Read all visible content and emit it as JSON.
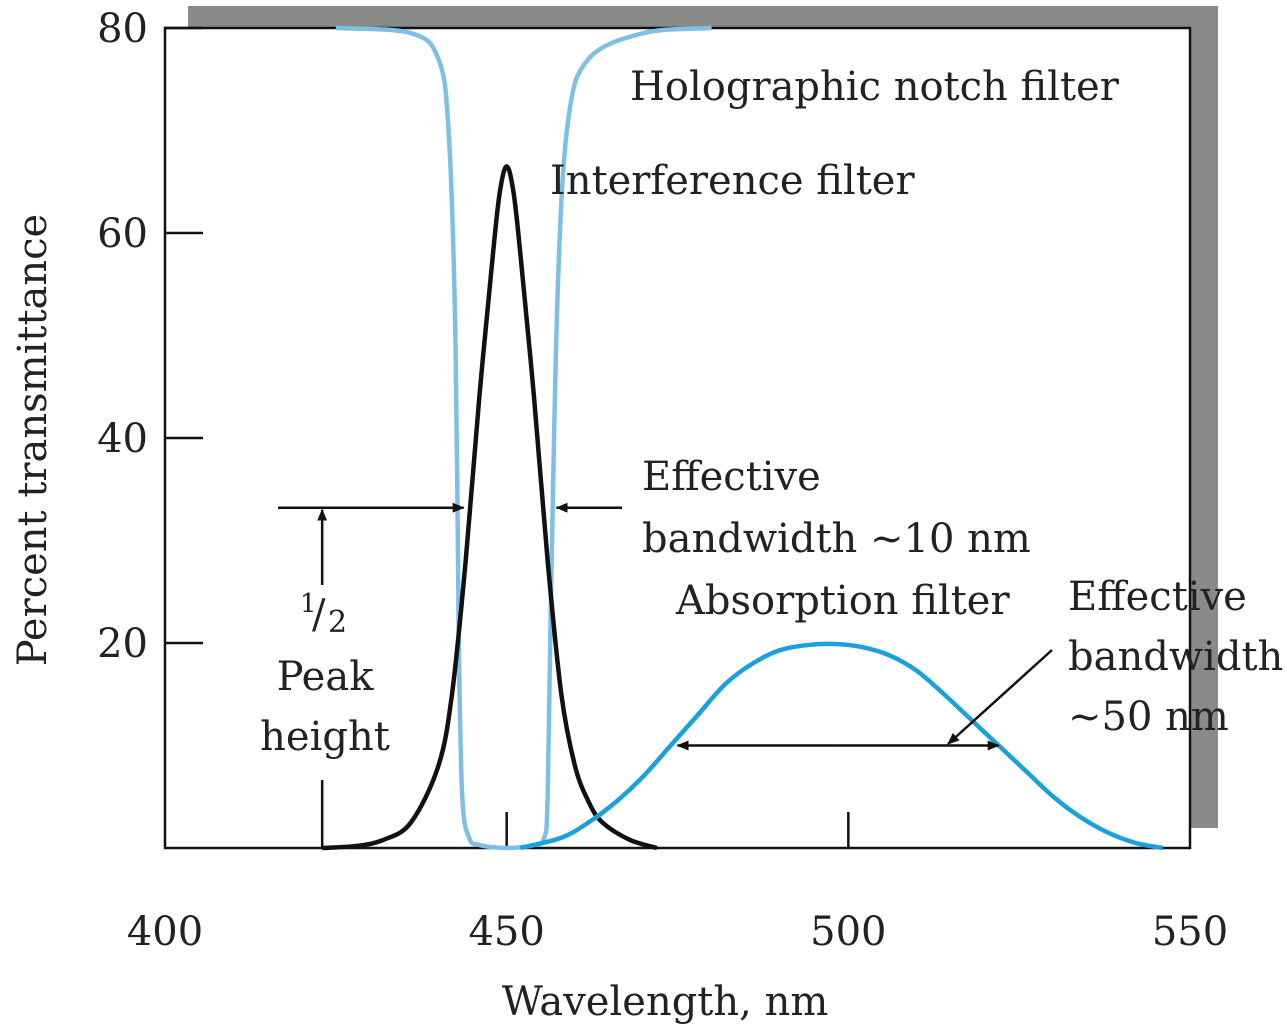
{
  "chart_data": {
    "type": "line",
    "title": "",
    "xlabel": "Wavelength, nm",
    "ylabel": "Percent transmittance",
    "xlim": [
      400,
      550
    ],
    "ylim": [
      0,
      80
    ],
    "x_ticks": [
      400,
      450,
      500,
      550
    ],
    "y_ticks": [
      20,
      40,
      60,
      80
    ],
    "grid": false,
    "colors": {
      "holographic": "#7fbfe6",
      "interference": "#111111",
      "absorption": "#1aa0dc",
      "frame": "#111111",
      "shadow": "#8a8a8a"
    },
    "series": [
      {
        "name": "Holographic notch filter",
        "x": [
          425,
          436,
          440,
          441.5,
          442.5,
          443,
          443.5,
          444.5,
          446,
          450,
          454,
          455.5,
          456,
          456.5,
          457.5,
          459,
          462,
          470,
          480
        ],
        "y": [
          80,
          79.5,
          77,
          70,
          50,
          20,
          5,
          1,
          0.3,
          0,
          0.3,
          1,
          5,
          25,
          55,
          71,
          77,
          79.5,
          80
        ]
      },
      {
        "name": "Interference filter",
        "x": [
          423,
          428,
          432,
          436,
          440,
          442,
          444,
          446,
          448,
          449,
          450,
          451,
          452,
          454,
          456,
          458,
          460,
          462,
          464,
          468,
          472
        ],
        "y": [
          0,
          0.2,
          0.8,
          2.5,
          8,
          15,
          28,
          44,
          58,
          64,
          66.5,
          64,
          58,
          44,
          28,
          15,
          8,
          4.5,
          2.5,
          0.8,
          0
        ]
      },
      {
        "name": "Absorption filter",
        "x": [
          452,
          458,
          462,
          466,
          470,
          474,
          478,
          482,
          486,
          490,
          494,
          498,
          502,
          506,
          510,
          514,
          518,
          522,
          526,
          530,
          534,
          538,
          542,
          546
        ],
        "y": [
          0,
          1,
          2.5,
          4.5,
          7,
          10,
          13,
          16,
          18,
          19.3,
          19.8,
          19.9,
          19.6,
          18.8,
          17.3,
          15,
          12.5,
          10,
          7.5,
          5,
          3,
          1.5,
          0.5,
          0
        ]
      }
    ],
    "annotations": {
      "holographic_label": "Holographic notch filter",
      "interference_label": "Interference filter",
      "effective_bw_10_line1": "Effective",
      "effective_bw_10_line2": "bandwidth ~10 nm",
      "absorption_label": "Absorption filter",
      "effective_bw_50_line1": "Effective",
      "effective_bw_50_line2": "bandwidth",
      "effective_bw_50_line3": "~50 nm",
      "half_sup": "1",
      "half_slash": "/",
      "half_sub": "2",
      "peak_line1": "Peak",
      "peak_line2": "height"
    },
    "markers": {
      "half_peak_level": 33.2,
      "interference_bw_x": [
        444,
        457
      ],
      "absorption_bw_level": 10,
      "absorption_bw_x": [
        475,
        522
      ],
      "half_peak_arrow_x": 423
    }
  }
}
